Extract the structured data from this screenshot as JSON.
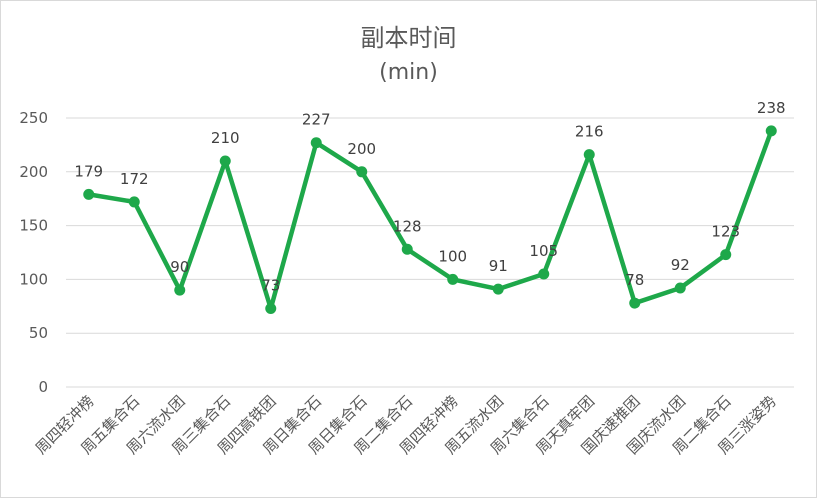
{
  "chart_data": {
    "type": "line",
    "title": "副本时间",
    "subtitle": "(min)",
    "categories": [
      "周四轻冲榜",
      "周五集合石",
      "周六流水团",
      "周三集合石",
      "周四高铁团",
      "周日集合石",
      "周日集合石",
      "周二集合石",
      "周四轻冲榜",
      "周五流水团",
      "周六集合石",
      "周天真牢团",
      "国庆速推团",
      "国庆流水团",
      "周二集合石",
      "周三涨姿势"
    ],
    "values": [
      179,
      172,
      90,
      210,
      73,
      227,
      200,
      128,
      100,
      91,
      105,
      216,
      78,
      92,
      123,
      238
    ],
    "ylim": [
      0,
      250
    ],
    "yticks": [
      0,
      50,
      100,
      150,
      200,
      250
    ],
    "grid": true,
    "legend": "none",
    "line_color": "#1ea84a"
  }
}
